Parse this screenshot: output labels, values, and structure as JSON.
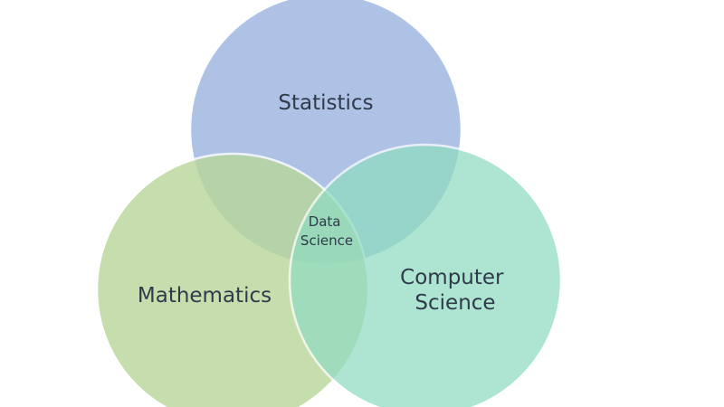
{
  "diagram": {
    "type": "venn",
    "sets": [
      {
        "id": "statistics",
        "label": "Statistics",
        "color": "#9fb8e0"
      },
      {
        "id": "mathematics",
        "label": "Mathematics",
        "color": "#b9d79a"
      },
      {
        "id": "computer_science",
        "label_lines": [
          "Computer",
          "Science"
        ],
        "color": "#8fdcc1"
      }
    ],
    "intersection": {
      "label_lines": [
        "Data",
        "Science"
      ]
    }
  }
}
